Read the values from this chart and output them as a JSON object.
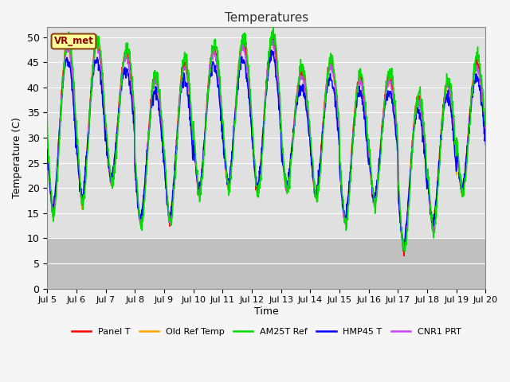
{
  "title": "Temperatures",
  "xlabel": "Time",
  "ylabel": "Temperature (C)",
  "ylim": [
    0,
    52
  ],
  "yticks": [
    0,
    5,
    10,
    15,
    20,
    25,
    30,
    35,
    40,
    45,
    50
  ],
  "x_start_days": 5,
  "x_end_days": 20,
  "x_tick_days": [
    5,
    6,
    7,
    8,
    9,
    10,
    11,
    12,
    13,
    14,
    15,
    16,
    17,
    18,
    19,
    20
  ],
  "x_tick_labels": [
    "Jul 5",
    "Jul 6",
    "Jul 7",
    "Jul 8",
    "Jul 9",
    "Jul 10",
    "Jul 11",
    "Jul 12",
    "Jul 13",
    "Jul 14",
    "Jul 15",
    "Jul 16",
    "Jul 17",
    "Jul 18",
    "Jul 19",
    "Jul 20"
  ],
  "site_label": "VR_met",
  "shade_below": 10,
  "bg_color": "#e0e0e0",
  "shade_color": "#c0c0c0",
  "lines": {
    "Panel T": {
      "color": "#ff0000"
    },
    "Old Ref Temp": {
      "color": "#ffa500"
    },
    "AM25T Ref": {
      "color": "#00dd00"
    },
    "HMP45 T": {
      "color": "#0000ff"
    },
    "CNR1 PRT": {
      "color": "#cc44ff"
    }
  },
  "legend_colors": [
    "#ff0000",
    "#ffa500",
    "#00dd00",
    "#0000ff",
    "#cc44ff"
  ],
  "legend_labels": [
    "Panel T",
    "Old Ref Temp",
    "AM25T Ref",
    "HMP45 T",
    "CNR1 PRT"
  ],
  "day_maxes": [
    49,
    49,
    47,
    42,
    45,
    48,
    49,
    50,
    43,
    45,
    42,
    42,
    38,
    41,
    45
  ],
  "day_mins": [
    15,
    17,
    21,
    13,
    13,
    19,
    20,
    19,
    20,
    18,
    13,
    17,
    8,
    12,
    19
  ],
  "n_days": 15,
  "samples_per_day": 96
}
